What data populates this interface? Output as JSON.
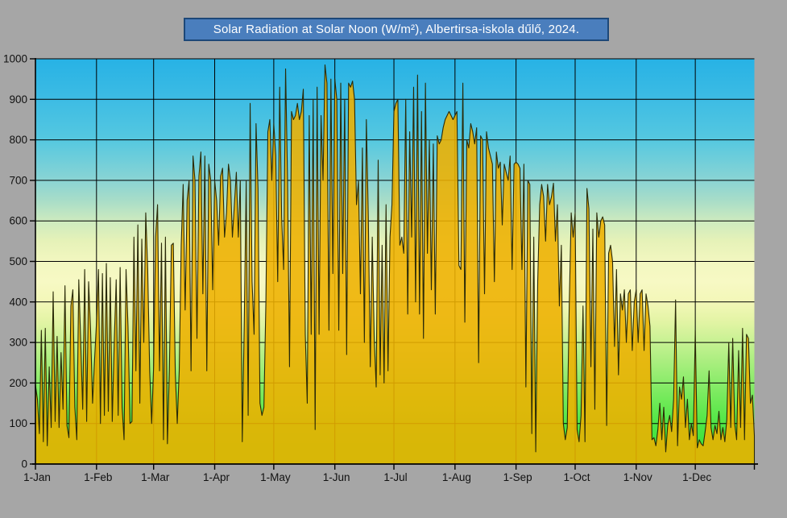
{
  "page": {
    "background": "#a6a6a6"
  },
  "title": {
    "text": "Solar Radiation at Solar Noon (W/m²), Albertirsa-iskola dűlő, 2024.",
    "bg": "#4a7ebd",
    "border": "#1d4878",
    "color": "#ffffff"
  },
  "chart_data": {
    "type": "area",
    "title": "Solar Radiation at Solar Noon (W/m²), Albertirsa-iskola dűlő, 2024.",
    "xlabel": "",
    "ylabel": "",
    "ylim": [
      0,
      1000
    ],
    "y_tick_step": 100,
    "y_tick_labels": [
      "0",
      "100",
      "200",
      "300",
      "400",
      "500",
      "600",
      "700",
      "800",
      "900",
      "1000"
    ],
    "x_tick_labels": [
      "1-Jan",
      "1-Feb",
      "1-Mar",
      "1-Apr",
      "1-May",
      "1-Jun",
      "1-Jul",
      "1-Aug",
      "1-Sep",
      "1-Oct",
      "1-Nov",
      "1-Dec"
    ],
    "month_day_offsets": [
      0,
      31,
      60,
      91,
      121,
      152,
      182,
      213,
      244,
      274,
      305,
      335
    ],
    "days_total": 365,
    "grid": true,
    "legend": false,
    "area_color": "#eeb000",
    "area_opacity": 0.88,
    "outline_color": "#2a2a08",
    "gridline_color": "#000000",
    "axis_color": "#000000",
    "label_color": "#111111",
    "background_gradient_stops": [
      [
        "0%",
        "#27b2e5"
      ],
      [
        "10%",
        "#3dbce4"
      ],
      [
        "20%",
        "#55c8e0"
      ],
      [
        "30%",
        "#8ad4d4"
      ],
      [
        "35%",
        "#a8ddc8"
      ],
      [
        "40%",
        "#cdeabf"
      ],
      [
        "45%",
        "#e6f2b8"
      ],
      [
        "50%",
        "#f2f7c0"
      ],
      [
        "55%",
        "#f7f9c4"
      ],
      [
        "60%",
        "#f3f7b8"
      ],
      [
        "65%",
        "#e2f4a4"
      ],
      [
        "70%",
        "#c6f192"
      ],
      [
        "75%",
        "#a8ee7e"
      ],
      [
        "80%",
        "#8aec6a"
      ],
      [
        "85%",
        "#6ce955"
      ],
      [
        "90%",
        "#50e646"
      ],
      [
        "95%",
        "#3fe23e"
      ],
      [
        "100%",
        "#38e03c"
      ]
    ],
    "values": [
      195,
      160,
      75,
      330,
      55,
      335,
      45,
      240,
      90,
      425,
      105,
      315,
      90,
      275,
      135,
      440,
      95,
      65,
      390,
      430,
      140,
      60,
      455,
      300,
      135,
      480,
      105,
      450,
      330,
      150,
      255,
      350,
      480,
      100,
      470,
      120,
      495,
      130,
      460,
      105,
      300,
      455,
      120,
      485,
      140,
      60,
      480,
      340,
      100,
      105,
      560,
      230,
      590,
      150,
      555,
      300,
      620,
      480,
      230,
      100,
      240,
      560,
      640,
      230,
      545,
      60,
      560,
      50,
      230,
      540,
      545,
      225,
      100,
      230,
      540,
      690,
      380,
      650,
      700,
      230,
      760,
      700,
      310,
      710,
      770,
      420,
      760,
      230,
      740,
      700,
      430,
      700,
      650,
      540,
      710,
      730,
      560,
      620,
      740,
      700,
      560,
      640,
      720,
      560,
      700,
      55,
      340,
      700,
      120,
      890,
      450,
      320,
      840,
      680,
      150,
      120,
      140,
      400,
      820,
      850,
      700,
      840,
      760,
      450,
      930,
      610,
      480,
      975,
      700,
      240,
      870,
      850,
      860,
      890,
      850,
      870,
      925,
      320,
      150,
      860,
      320,
      900,
      85,
      930,
      320,
      860,
      700,
      985,
      940,
      330,
      950,
      470,
      950,
      900,
      330,
      940,
      470,
      900,
      270,
      940,
      930,
      945,
      900,
      640,
      700,
      420,
      780,
      300,
      850,
      610,
      240,
      560,
      310,
      190,
      750,
      220,
      540,
      200,
      640,
      230,
      560,
      640,
      870,
      890,
      900,
      540,
      560,
      520,
      900,
      370,
      820,
      560,
      930,
      400,
      960,
      370,
      870,
      310,
      940,
      520,
      800,
      430,
      790,
      370,
      810,
      790,
      800,
      830,
      850,
      860,
      870,
      860,
      850,
      860,
      870,
      490,
      480,
      940,
      350,
      800,
      780,
      840,
      820,
      790,
      830,
      250,
      810,
      800,
      420,
      820,
      780,
      760,
      740,
      450,
      770,
      730,
      745,
      590,
      740,
      720,
      700,
      760,
      480,
      740,
      745,
      740,
      730,
      480,
      740,
      190,
      700,
      690,
      75,
      560,
      30,
      450,
      640,
      690,
      660,
      550,
      690,
      640,
      660,
      693,
      550,
      640,
      390,
      540,
      100,
      60,
      90,
      390,
      620,
      560,
      620,
      85,
      55,
      120,
      390,
      55,
      680,
      630,
      240,
      580,
      135,
      620,
      560,
      600,
      610,
      590,
      95,
      520,
      540,
      500,
      290,
      480,
      220,
      420,
      380,
      430,
      300,
      420,
      430,
      280,
      400,
      430,
      300,
      420,
      430,
      280,
      420,
      390,
      340,
      60,
      65,
      45,
      85,
      150,
      60,
      140,
      30,
      95,
      120,
      80,
      160,
      405,
      45,
      190,
      160,
      215,
      90,
      160,
      60,
      100,
      70,
      330,
      40,
      60,
      50,
      45,
      80,
      120,
      230,
      90,
      60,
      95,
      75,
      130,
      60,
      90,
      55,
      110,
      300,
      90,
      310,
      100,
      60,
      280,
      90,
      335,
      60,
      320,
      310,
      150,
      170,
      70
    ]
  }
}
